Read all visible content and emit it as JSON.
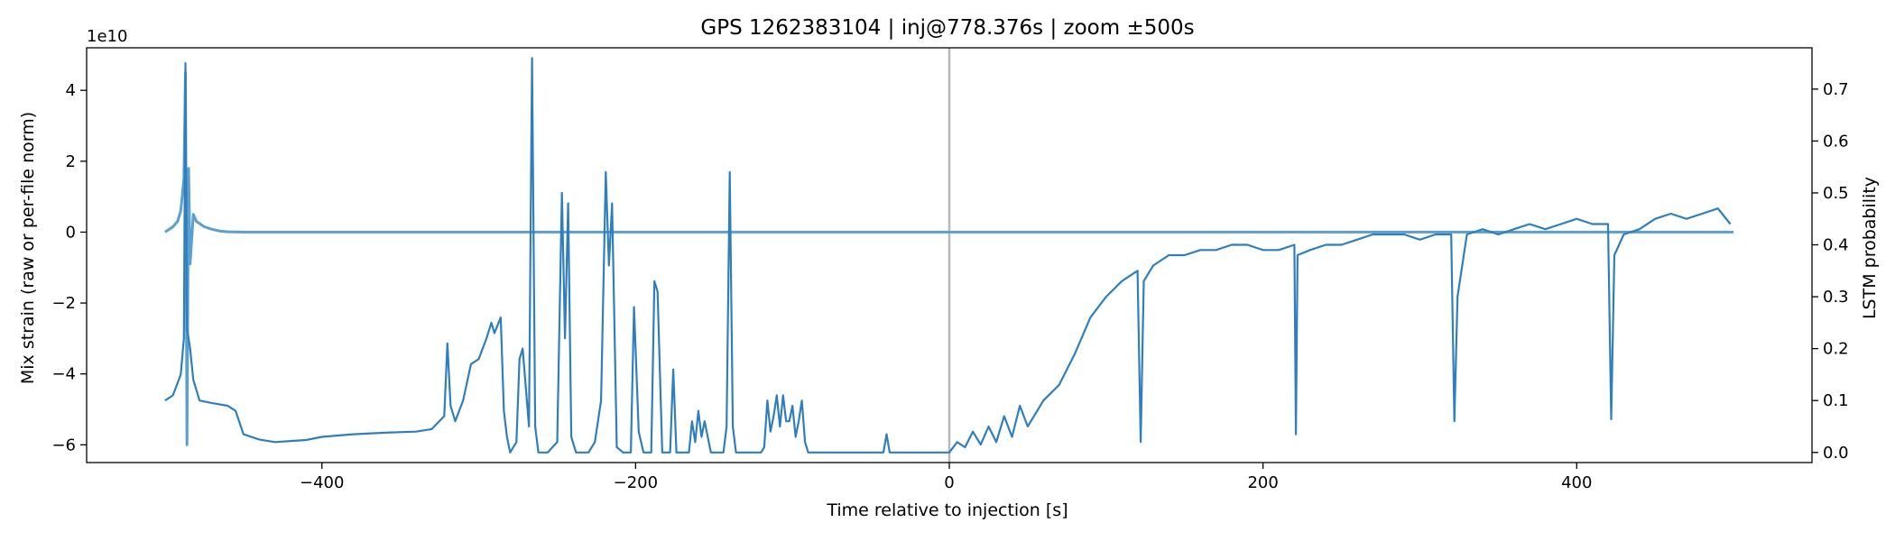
{
  "chart_data": {
    "type": "line",
    "title": "GPS 1262383104 | inj@778.376s | zoom ±500s",
    "xlabel": "Time relative to injection [s]",
    "ylabel_left": "Mix strain (raw or per-file norm)",
    "ylabel_right": "LSTM probability",
    "left_offset_text": "1e10",
    "xlim": [
      -550,
      550
    ],
    "ylim_left": [
      -6.5,
      5.2
    ],
    "ylim_right": [
      -0.0195,
      0.7796
    ],
    "x_ticks": [
      -400,
      -200,
      0,
      200,
      400
    ],
    "x_tick_labels": [
      "−400",
      "−200",
      "0",
      "200",
      "400"
    ],
    "left_ticks": [
      -6,
      -4,
      -2,
      0,
      2,
      4
    ],
    "left_tick_labels": [
      "−6",
      "−4",
      "−2",
      "0",
      "2",
      "4"
    ],
    "right_ticks": [
      0.0,
      0.1,
      0.2,
      0.3,
      0.4,
      0.5,
      0.6,
      0.7
    ],
    "right_tick_labels": [
      "0.0",
      "0.1",
      "0.2",
      "0.3",
      "0.4",
      "0.5",
      "0.6",
      "0.7"
    ],
    "injection_marker_x": 0,
    "grid": false,
    "series": [
      {
        "name": "Mix strain",
        "axis": "left",
        "color": "#5b9fd0",
        "description_values": "centered near 0 (units of 1e10); ringdown burst near t=-487 s with peaks about +4.5 and -6, otherwise flat at 0 to t=+500 s",
        "x": [
          -500,
          -495,
          -492,
          -490,
          -488,
          -487,
          -486,
          -485,
          -484,
          -482,
          -480,
          -475,
          -470,
          -465,
          -460,
          -450,
          -400,
          -300,
          -200,
          -100,
          0,
          100,
          200,
          300,
          400,
          500
        ],
        "values": [
          0,
          0.15,
          0.3,
          0.6,
          1.5,
          4.5,
          -6.0,
          1.8,
          -0.9,
          0.5,
          0.3,
          0.15,
          0.08,
          0.03,
          0.01,
          0,
          0,
          0,
          0,
          0,
          0,
          0,
          0,
          0,
          0,
          0
        ]
      },
      {
        "name": "LSTM probability",
        "axis": "right",
        "color": "#2f7fbf",
        "x": [
          -500,
          -495,
          -490,
          -488,
          -487,
          -486,
          -484,
          -482,
          -480,
          -478,
          -470,
          -460,
          -455,
          -450,
          -440,
          -430,
          -420,
          -410,
          -400,
          -380,
          -360,
          -340,
          -330,
          -322,
          -320,
          -318,
          -315,
          -310,
          -305,
          -300,
          -295,
          -292,
          -290,
          -286,
          -284,
          -282,
          -280,
          -276,
          -274,
          -272,
          -268,
          -266,
          -264,
          -262,
          -260,
          -256,
          -250,
          -247,
          -245,
          -243,
          -241,
          -238,
          -235,
          -230,
          -226,
          -222,
          -219,
          -217,
          -215,
          -212,
          -208,
          -205,
          -203,
          -201,
          -198,
          -195,
          -193,
          -190,
          -188,
          -186,
          -183,
          -178,
          -176,
          -174,
          -170,
          -166,
          -164,
          -162,
          -160,
          -158,
          -156,
          -152,
          -148,
          -146,
          -144,
          -142,
          -140,
          -138,
          -136,
          -134,
          -130,
          -120,
          -118,
          -116,
          -114,
          -112,
          -110,
          -108,
          -106,
          -104,
          -102,
          -100,
          -98,
          -96,
          -94,
          -92,
          -90,
          -86,
          -80,
          -70,
          -60,
          -50,
          -42,
          -40,
          -38,
          -30,
          -20,
          -10,
          0,
          5,
          10,
          15,
          20,
          25,
          30,
          35,
          40,
          45,
          50,
          60,
          70,
          80,
          90,
          100,
          110,
          120,
          122,
          124,
          130,
          140,
          150,
          160,
          170,
          180,
          190,
          200,
          210,
          220,
          221,
          222,
          230,
          240,
          250,
          260,
          270,
          280,
          290,
          300,
          310,
          320,
          322,
          324,
          330,
          340,
          350,
          360,
          370,
          380,
          390,
          400,
          410,
          420,
          422,
          424,
          430,
          440,
          450,
          460,
          470,
          480,
          490,
          498
        ],
        "values": [
          0.1,
          0.11,
          0.15,
          0.22,
          0.75,
          0.24,
          0.2,
          0.14,
          0.12,
          0.1,
          0.095,
          0.09,
          0.08,
          0.035,
          0.025,
          0.02,
          0.022,
          0.024,
          0.03,
          0.035,
          0.038,
          0.04,
          0.045,
          0.07,
          0.21,
          0.09,
          0.06,
          0.1,
          0.17,
          0.18,
          0.22,
          0.25,
          0.23,
          0.26,
          0.08,
          0.03,
          0.0,
          0.02,
          0.18,
          0.2,
          0.05,
          0.76,
          0.05,
          0.0,
          0.0,
          0.0,
          0.02,
          0.5,
          0.22,
          0.48,
          0.03,
          0.0,
          0.0,
          0.0,
          0.02,
          0.1,
          0.54,
          0.36,
          0.48,
          0.01,
          0.0,
          0.0,
          0.0,
          0.28,
          0.04,
          0.0,
          0.0,
          0.0,
          0.33,
          0.31,
          0.0,
          0.0,
          0.16,
          0.0,
          0.0,
          0.0,
          0.06,
          0.02,
          0.08,
          0.03,
          0.06,
          0.0,
          0.0,
          0.0,
          0.0,
          0.05,
          0.54,
          0.05,
          0.0,
          0.0,
          0.0,
          0.0,
          0.01,
          0.1,
          0.04,
          0.07,
          0.11,
          0.05,
          0.11,
          0.06,
          0.06,
          0.09,
          0.03,
          0.06,
          0.1,
          0.02,
          0.0,
          0.0,
          0.0,
          0.0,
          0.0,
          0.0,
          0.0,
          0.035,
          0.0,
          0.0,
          0.0,
          0.0,
          0.0,
          0.02,
          0.01,
          0.04,
          0.015,
          0.05,
          0.02,
          0.07,
          0.03,
          0.09,
          0.05,
          0.1,
          0.13,
          0.19,
          0.26,
          0.3,
          0.33,
          0.35,
          0.02,
          0.33,
          0.36,
          0.38,
          0.38,
          0.39,
          0.39,
          0.4,
          0.4,
          0.39,
          0.39,
          0.4,
          0.035,
          0.38,
          0.39,
          0.4,
          0.4,
          0.41,
          0.42,
          0.42,
          0.42,
          0.41,
          0.42,
          0.42,
          0.06,
          0.3,
          0.42,
          0.43,
          0.42,
          0.43,
          0.44,
          0.43,
          0.44,
          0.45,
          0.44,
          0.44,
          0.064,
          0.38,
          0.42,
          0.43,
          0.45,
          0.46,
          0.45,
          0.46,
          0.47,
          0.44
        ]
      }
    ]
  }
}
